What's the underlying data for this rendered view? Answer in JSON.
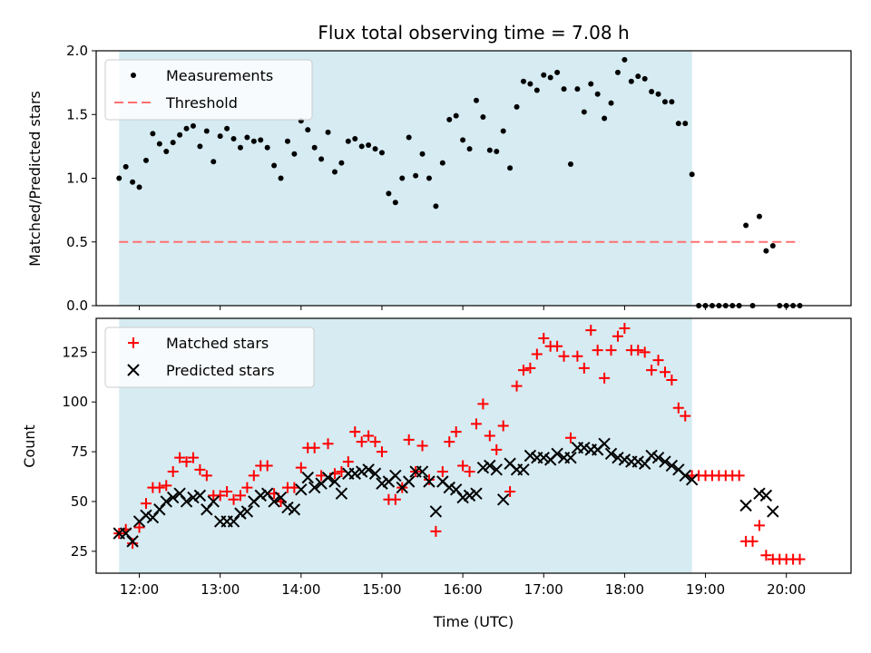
{
  "chart_data": [
    {
      "type": "scatter",
      "title": "Flux total observing time = 7.08 h",
      "ylabel": "Matched/Predicted stars",
      "ylim": [
        0,
        2.0
      ],
      "yticks": [
        "0.0",
        "0.5",
        "1.0",
        "1.5",
        "2.0"
      ],
      "xlim": [
        "11:28",
        "20:48"
      ],
      "observing_window": {
        "start": "11:45",
        "end": "18:50",
        "color": "#add8e6"
      },
      "legend": {
        "position": "upper-left",
        "entries": [
          "Measurements",
          "Threshold"
        ]
      },
      "threshold": {
        "name": "Threshold",
        "value": 0.5,
        "x_start": "11:45",
        "x_end": "20:10",
        "color": "#ff7070",
        "style": "dashed"
      },
      "series": [
        {
          "name": "Measurements",
          "marker": "dot",
          "color": "#000000",
          "x": [
            "11:45",
            "11:50",
            "11:55",
            "12:00",
            "12:05",
            "12:10",
            "12:15",
            "12:20",
            "12:25",
            "12:30",
            "12:35",
            "12:40",
            "12:45",
            "12:50",
            "12:55",
            "13:00",
            "13:05",
            "13:10",
            "13:15",
            "13:20",
            "13:25",
            "13:30",
            "13:35",
            "13:40",
            "13:45",
            "13:50",
            "13:55",
            "14:00",
            "14:05",
            "14:10",
            "14:15",
            "14:20",
            "14:25",
            "14:30",
            "14:35",
            "14:40",
            "14:45",
            "14:50",
            "14:55",
            "15:00",
            "15:05",
            "15:10",
            "15:15",
            "15:20",
            "15:25",
            "15:30",
            "15:35",
            "15:40",
            "15:45",
            "15:50",
            "15:55",
            "16:00",
            "16:05",
            "16:10",
            "16:15",
            "16:20",
            "16:25",
            "16:30",
            "16:35",
            "16:40",
            "16:45",
            "16:50",
            "16:55",
            "17:00",
            "17:05",
            "17:10",
            "17:15",
            "17:20",
            "17:25",
            "17:30",
            "17:35",
            "17:40",
            "17:45",
            "17:50",
            "17:55",
            "18:00",
            "18:05",
            "18:10",
            "18:15",
            "18:20",
            "18:25",
            "18:30",
            "18:35",
            "18:40",
            "18:45",
            "18:50",
            "18:55",
            "19:00",
            "19:05",
            "19:10",
            "19:15",
            "19:20",
            "19:25",
            "19:30",
            "19:35",
            "19:40",
            "19:45",
            "19:50",
            "19:55",
            "20:00",
            "20:05",
            "20:10"
          ],
          "y": [
            1.0,
            1.09,
            0.97,
            0.93,
            1.14,
            1.35,
            1.27,
            1.21,
            1.28,
            1.34,
            1.39,
            1.41,
            1.25,
            1.37,
            1.13,
            1.33,
            1.39,
            1.31,
            1.24,
            1.32,
            1.29,
            1.3,
            1.24,
            1.1,
            1.0,
            1.29,
            1.19,
            1.45,
            1.38,
            1.24,
            1.15,
            1.36,
            1.05,
            1.12,
            1.29,
            1.31,
            1.25,
            1.26,
            1.23,
            1.2,
            0.88,
            0.81,
            1.0,
            1.32,
            1.02,
            1.19,
            1.0,
            0.78,
            1.12,
            1.46,
            1.49,
            1.3,
            1.23,
            1.61,
            1.48,
            1.22,
            1.21,
            1.37,
            1.08,
            1.56,
            1.76,
            1.74,
            1.69,
            1.81,
            1.79,
            1.83,
            1.7,
            1.11,
            1.7,
            1.52,
            1.74,
            1.66,
            1.47,
            1.59,
            1.83,
            1.93,
            1.76,
            1.8,
            1.78,
            1.68,
            1.66,
            1.6,
            1.6,
            1.43,
            1.43,
            1.03,
            0.0,
            0.0,
            0.0,
            0.0,
            0.0,
            0.0,
            0.0,
            0.63,
            0.0,
            0.7,
            0.43,
            0.47,
            0.0,
            0.0,
            0.0,
            0.0
          ]
        }
      ]
    },
    {
      "type": "scatter",
      "xlabel": "Time (UTC)",
      "ylabel": "Count",
      "ylim": [
        14,
        142
      ],
      "yticks": [
        "25",
        "50",
        "75",
        "100",
        "125"
      ],
      "xlim": [
        "11:28",
        "20:48"
      ],
      "xticks": [
        "12:00",
        "13:00",
        "14:00",
        "15:00",
        "16:00",
        "17:00",
        "18:00",
        "19:00",
        "20:00"
      ],
      "observing_window": {
        "start": "11:45",
        "end": "18:50",
        "color": "#add8e6"
      },
      "legend": {
        "position": "upper-left",
        "entries": [
          "Matched stars",
          "Predicted stars"
        ]
      },
      "series": [
        {
          "name": "Matched stars",
          "marker": "plus",
          "color": "#ff0000",
          "x": [
            "11:45",
            "11:50",
            "11:55",
            "12:00",
            "12:05",
            "12:10",
            "12:15",
            "12:20",
            "12:25",
            "12:30",
            "12:35",
            "12:40",
            "12:45",
            "12:50",
            "12:55",
            "13:00",
            "13:05",
            "13:10",
            "13:15",
            "13:20",
            "13:25",
            "13:30",
            "13:35",
            "13:40",
            "13:45",
            "13:50",
            "13:55",
            "14:00",
            "14:05",
            "14:10",
            "14:15",
            "14:20",
            "14:25",
            "14:30",
            "14:35",
            "14:40",
            "14:45",
            "14:50",
            "14:55",
            "15:00",
            "15:05",
            "15:10",
            "15:15",
            "15:20",
            "15:25",
            "15:30",
            "15:35",
            "15:40",
            "15:45",
            "15:50",
            "15:55",
            "16:00",
            "16:05",
            "16:10",
            "16:15",
            "16:20",
            "16:25",
            "16:30",
            "16:35",
            "16:40",
            "16:45",
            "16:50",
            "16:55",
            "17:00",
            "17:05",
            "17:10",
            "17:15",
            "17:20",
            "17:25",
            "17:30",
            "17:35",
            "17:40",
            "17:45",
            "17:50",
            "17:55",
            "18:00",
            "18:05",
            "18:10",
            "18:15",
            "18:20",
            "18:25",
            "18:30",
            "18:35",
            "18:40",
            "18:45",
            "18:50",
            "18:55",
            "19:00",
            "19:05",
            "19:10",
            "19:15",
            "19:20",
            "19:25",
            "19:30",
            "19:35",
            "19:40",
            "19:45",
            "19:50",
            "19:55",
            "20:00",
            "20:05",
            "20:10"
          ],
          "y": [
            34,
            36,
            29,
            37,
            49,
            57,
            57,
            58,
            65,
            72,
            70,
            72,
            66,
            63,
            53,
            53,
            55,
            51,
            53,
            57,
            63,
            68,
            68,
            54,
            50,
            57,
            57,
            67,
            77,
            77,
            63,
            79,
            64,
            65,
            70,
            85,
            80,
            83,
            80,
            75,
            51,
            51,
            57,
            81,
            65,
            78,
            61,
            35,
            65,
            80,
            85,
            68,
            65,
            89,
            99,
            83,
            76,
            88,
            55,
            108,
            116,
            117,
            124,
            132,
            128,
            128,
            123,
            82,
            123,
            117,
            136,
            126,
            112,
            126,
            133,
            137,
            126,
            126,
            125,
            116,
            121,
            115,
            111,
            97,
            93,
            63,
            63,
            63,
            63,
            63,
            63,
            63,
            63,
            30,
            30,
            38,
            23,
            21,
            21,
            21,
            21,
            21
          ]
        },
        {
          "name": "Predicted stars",
          "marker": "x",
          "color": "#000000",
          "x": [
            "11:45",
            "11:50",
            "11:55",
            "12:00",
            "12:05",
            "12:10",
            "12:15",
            "12:20",
            "12:25",
            "12:30",
            "12:35",
            "12:40",
            "12:45",
            "12:50",
            "12:55",
            "13:00",
            "13:05",
            "13:10",
            "13:15",
            "13:20",
            "13:25",
            "13:30",
            "13:35",
            "13:40",
            "13:45",
            "13:50",
            "13:55",
            "14:00",
            "14:05",
            "14:10",
            "14:15",
            "14:20",
            "14:25",
            "14:30",
            "14:35",
            "14:40",
            "14:45",
            "14:50",
            "14:55",
            "15:00",
            "15:05",
            "15:10",
            "15:15",
            "15:20",
            "15:25",
            "15:30",
            "15:35",
            "15:40",
            "15:45",
            "15:50",
            "15:55",
            "16:00",
            "16:05",
            "16:10",
            "16:15",
            "16:20",
            "16:25",
            "16:30",
            "16:35",
            "16:40",
            "16:45",
            "16:50",
            "16:55",
            "17:00",
            "17:05",
            "17:10",
            "17:15",
            "17:20",
            "17:25",
            "17:30",
            "17:35",
            "17:40",
            "17:45",
            "17:50",
            "17:55",
            "18:00",
            "18:05",
            "18:10",
            "18:15",
            "18:20",
            "18:25",
            "18:30",
            "18:35",
            "18:40",
            "18:45",
            "18:50",
            "19:30",
            "19:40",
            "19:45",
            "19:50"
          ],
          "y": [
            34,
            34,
            30,
            40,
            43,
            42,
            46,
            50,
            52,
            54,
            50,
            52,
            53,
            46,
            50,
            40,
            40,
            40,
            44,
            45,
            50,
            53,
            54,
            50,
            52,
            47,
            46,
            56,
            62,
            57,
            59,
            62,
            60,
            54,
            64,
            64,
            65,
            66,
            64,
            59,
            60,
            63,
            57,
            60,
            65,
            65,
            60,
            45,
            60,
            57,
            56,
            52,
            53,
            54,
            67,
            68,
            66,
            51,
            69,
            66,
            66,
            73,
            72,
            72,
            71,
            74,
            72,
            72,
            77,
            77,
            76,
            76,
            79,
            74,
            72,
            71,
            70,
            70,
            69,
            73,
            72,
            70,
            68,
            66,
            63,
            61,
            48,
            54,
            53,
            45
          ]
        }
      ]
    }
  ]
}
